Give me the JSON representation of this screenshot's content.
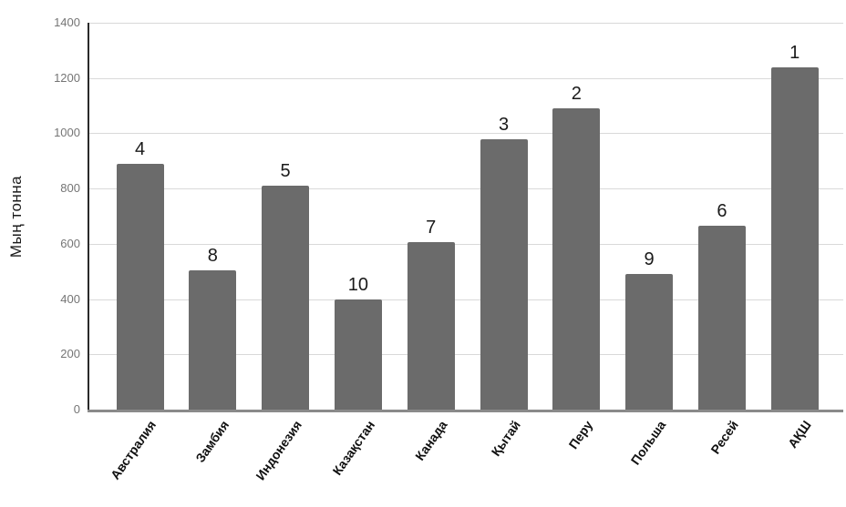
{
  "chart_data": {
    "type": "bar",
    "title": "",
    "xlabel": "",
    "ylabel": "Мың тонна",
    "categories": [
      "Австралия",
      "Замбия",
      "Индонезия",
      "Казақстан",
      "Канада",
      "Қытай",
      "Перу",
      "Польша",
      "Ресей",
      "АҚШ"
    ],
    "values": [
      890,
      505,
      810,
      400,
      605,
      980,
      1090,
      490,
      665,
      1240
    ],
    "rank_labels": [
      "4",
      "8",
      "5",
      "10",
      "7",
      "3",
      "2",
      "9",
      "6",
      "1"
    ],
    "ylim": [
      0,
      1400
    ],
    "yticks": [
      0,
      200,
      400,
      600,
      800,
      1000,
      1200,
      1400
    ],
    "grid": "horizontal",
    "legend": "none",
    "bar_color": "#6b6b6b",
    "gridline_color": "#d9d9d9",
    "tick_label_color": "#757575"
  }
}
